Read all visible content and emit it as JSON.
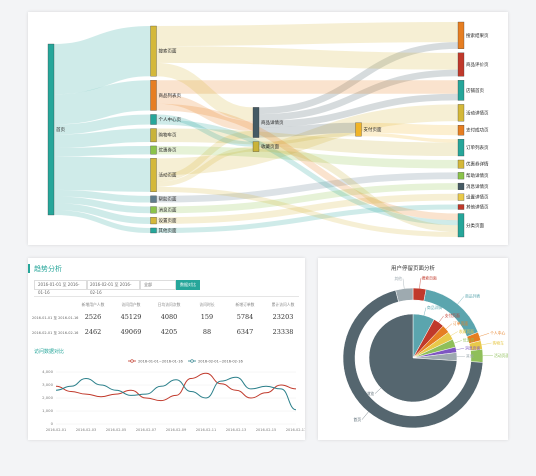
{
  "sankey": {
    "nodes": [
      {
        "label": "首页",
        "color": "#26a69a"
      },
      {
        "label": "搜索页面",
        "color": "#d4b83a"
      },
      {
        "label": "商品列表页",
        "color": "#e67e22"
      },
      {
        "label": "个人中心页",
        "color": "#26a69a"
      },
      {
        "label": "购物车页",
        "color": "#c9b33a"
      },
      {
        "label": "优惠券页",
        "color": "#8bc34a"
      },
      {
        "label": "活动页面",
        "color": "#d4b83a"
      },
      {
        "label": "帮助页面",
        "color": "#607d8b"
      },
      {
        "label": "消息页面",
        "color": "#8bc34a"
      },
      {
        "label": "设置页面",
        "color": "#d4b83a"
      },
      {
        "label": "其他页面",
        "color": "#26a69a"
      },
      {
        "label": "商品详情页",
        "color": "#455a64"
      },
      {
        "label": "收藏页面",
        "color": "#c9b33a"
      },
      {
        "label": "支付页面",
        "color": "#f0b429"
      },
      {
        "label": "搜索结果页",
        "color": "#e67e22"
      },
      {
        "label": "商品评价页",
        "color": "#c0392b"
      },
      {
        "label": "店铺首页",
        "color": "#26a69a"
      },
      {
        "label": "活动详情页",
        "color": "#d4b83a"
      },
      {
        "label": "支付成功页",
        "color": "#e67e22"
      },
      {
        "label": "订单列表页",
        "color": "#26a69a"
      },
      {
        "label": "优惠券详情",
        "color": "#d4b83a"
      },
      {
        "label": "帮助详情页",
        "color": "#8bc34a"
      },
      {
        "label": "消息详情页",
        "color": "#455a64"
      },
      {
        "label": "设置详情页",
        "color": "#e8c94a"
      },
      {
        "label": "其他详情页",
        "color": "#c0392b"
      },
      {
        "label": "分类页面",
        "color": "#26a69a"
      }
    ],
    "links": [
      {
        "source": 0,
        "target": 1,
        "value": 30
      },
      {
        "source": 0,
        "target": 2,
        "value": 18
      },
      {
        "source": 0,
        "target": 3,
        "value": 6
      },
      {
        "source": 0,
        "target": 4,
        "value": 8
      },
      {
        "source": 0,
        "target": 5,
        "value": 5
      },
      {
        "source": 0,
        "target": 6,
        "value": 20
      },
      {
        "source": 0,
        "target": 7,
        "value": 4
      },
      {
        "source": 0,
        "target": 8,
        "value": 4
      },
      {
        "source": 0,
        "target": 9,
        "value": 4
      },
      {
        "source": 0,
        "target": 10,
        "value": 3
      },
      {
        "source": 1,
        "target": 11,
        "value": 8
      },
      {
        "source": 1,
        "target": 14,
        "value": 12
      },
      {
        "source": 1,
        "target": 15,
        "value": 10
      },
      {
        "source": 2,
        "target": 11,
        "value": 6
      },
      {
        "source": 2,
        "target": 16,
        "value": 8
      },
      {
        "source": 2,
        "target": 25,
        "value": 4
      },
      {
        "source": 3,
        "target": 12,
        "value": 3
      },
      {
        "source": 3,
        "target": 25,
        "value": 3
      },
      {
        "source": 4,
        "target": 19,
        "value": 8
      },
      {
        "source": 5,
        "target": 20,
        "value": 5
      },
      {
        "source": 6,
        "target": 11,
        "value": 4
      },
      {
        "source": 6,
        "target": 12,
        "value": 3
      },
      {
        "source": 6,
        "target": 17,
        "value": 10
      },
      {
        "source": 6,
        "target": 25,
        "value": 3
      },
      {
        "source": 7,
        "target": 21,
        "value": 4
      },
      {
        "source": 8,
        "target": 22,
        "value": 4
      },
      {
        "source": 9,
        "target": 23,
        "value": 4
      },
      {
        "source": 10,
        "target": 24,
        "value": 3
      },
      {
        "source": 11,
        "target": 13,
        "value": 6
      },
      {
        "source": 11,
        "target": 15,
        "value": 4
      },
      {
        "source": 11,
        "target": 16,
        "value": 4
      },
      {
        "source": 11,
        "target": 14,
        "value": 4
      },
      {
        "source": 12,
        "target": 13,
        "value": 2
      },
      {
        "source": 12,
        "target": 25,
        "value": 4
      },
      {
        "source": 13,
        "target": 18,
        "value": 6
      },
      {
        "source": 13,
        "target": 19,
        "value": 2
      }
    ]
  },
  "trend": {
    "title": "趋势分析",
    "date_start_1": "2016-01-01 至 2016-01-16",
    "date_start_2": "2016-02-01 至 2016-02-16",
    "select": "全部",
    "button": "数据对比",
    "table": {
      "headers": [
        "新增用户人数",
        "访问用户数",
        "日均访问次数",
        "访问时长",
        "新增订单数",
        "累计访问人数"
      ],
      "rows": [
        [
          "2016-01-01 至 2016-01-16",
          "2526",
          "45129",
          "4080",
          "159",
          "5784",
          "23203"
        ],
        [
          "2016-02-01 至 2016-02-16",
          "2462",
          "49069",
          "4205",
          "88",
          "6347",
          "23338"
        ]
      ]
    }
  },
  "line_chart": {
    "type": "line",
    "title": "访问数据对比",
    "categories": [
      "2016-02-01",
      null,
      "2016-02-03",
      null,
      "2016-02-05",
      null,
      "2016-02-07",
      null,
      "2016-02-09",
      null,
      "2016-02-11",
      null,
      "2016-02-13",
      null,
      "2016-02-15",
      null,
      "2016-02-17"
    ],
    "series": [
      {
        "name": "2016-01-01~2016-01-16",
        "color": "#c0392b",
        "values": [
          2900,
          2500,
          2300,
          2100,
          2300,
          2600,
          2000,
          1800,
          2200,
          3500,
          3900,
          3100,
          2600,
          2000,
          2400,
          3000,
          2700
        ]
      },
      {
        "name": "2016-02-01~2016-02-16",
        "color": "#2a7f8a",
        "values": [
          2600,
          2900,
          3500,
          3000,
          2600,
          2200,
          2300,
          2900,
          3400,
          2500,
          2000,
          3300,
          3600,
          2700,
          2900,
          2700,
          1100
        ]
      }
    ],
    "ylim": [
      0,
      4000
    ],
    "yticks": [
      0,
      {
        "value": 1000,
        "label": "1,000"
      },
      {
        "value": 2000,
        "label": "2,000"
      },
      {
        "value": 3000,
        "label": "3,000"
      },
      {
        "value": 4000,
        "label": "4,000"
      }
    ],
    "grid": true
  },
  "donut": {
    "type": "pie",
    "title": "用户停留页面分析",
    "outer": [
      {
        "label": "搜索页面",
        "value": 3,
        "color": "#c0392b"
      },
      {
        "label": "商品列表",
        "value": 16,
        "color": "#5ba5ae"
      },
      {
        "label": "个人中心",
        "value": 2,
        "color": "#e67e22"
      },
      {
        "label": "购物车",
        "value": 2,
        "color": "#e8c94a"
      },
      {
        "label": "活动页面",
        "value": 3,
        "color": "#8fbf5a"
      },
      {
        "label": "首页",
        "value": 70,
        "color": "#55666f"
      },
      {
        "label": "其他",
        "value": 4,
        "color": "#9eaab0"
      }
    ],
    "inner": [
      {
        "label": "商品详情",
        "value": 8,
        "color": "#5ba5ae"
      },
      {
        "label": "支付页面",
        "value": 4,
        "color": "#c0392b"
      },
      {
        "label": "订单页面",
        "value": 3,
        "color": "#e67e22"
      },
      {
        "label": "收藏页面",
        "value": 3,
        "color": "#e8c94a"
      },
      {
        "label": "优惠券",
        "value": 3,
        "color": "#8fbf5a"
      },
      {
        "label": "消息页面",
        "value": 2,
        "color": "#7e57c2"
      },
      {
        "label": "其他",
        "value": 3,
        "color": "#9eaab0"
      },
      {
        "label": "主页浏览",
        "value": 74,
        "color": "#55666f"
      }
    ]
  }
}
